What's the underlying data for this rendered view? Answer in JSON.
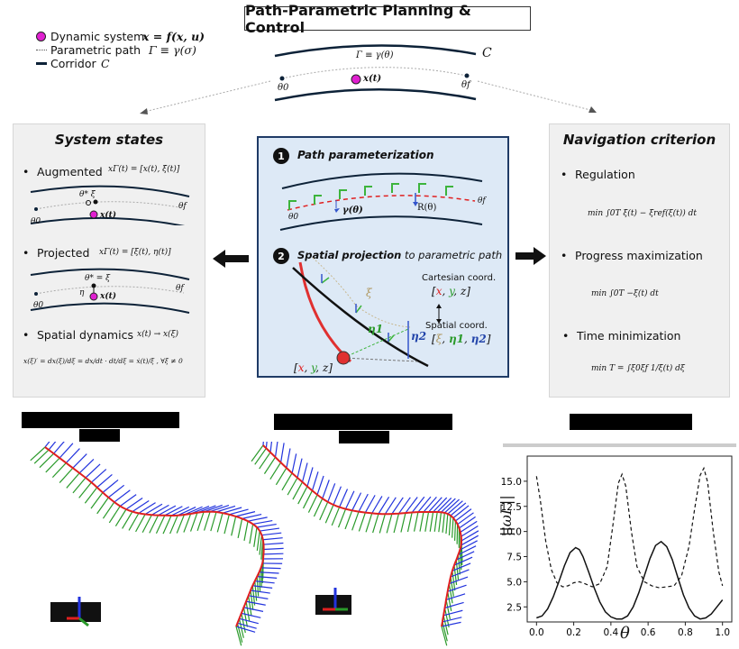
{
  "title": "Path-Parametric Planning & Control",
  "legend": {
    "dynamic_system": "Dynamic system",
    "dynamic_system_eq": "x = f(x, u)",
    "parametric_path": "Parametric path",
    "parametric_path_eq": "Γ ≡ γ(σ)",
    "corridor": "Corridor",
    "corridor_sym": "C"
  },
  "top_diagram": {
    "corridor_label": "C",
    "path_label": "Γ ≡ γ(θ)",
    "theta0": "θ0",
    "thetaf": "θf",
    "point": "x(t)"
  },
  "left_panel": {
    "title": "System states",
    "augmented_label": "Augmented",
    "augmented_eq": "xΓ(t) = [x(t), ξ̃(t)]",
    "d1_theta_star": "θ* ξ̃",
    "d1_theta0": "θ0",
    "d1_thetaf": "θf",
    "d1_point": "x(t)",
    "projected_label": "Projected",
    "projected_eq": "xΓ(t) = [ξ(t), η(t)]",
    "d2_theta_star": "θ* = ξ",
    "d2_eta": "η",
    "d2_theta0": "θ0",
    "d2_thetaf": "θf",
    "d2_point": "x(t)",
    "spatial_label": "Spatial dynamics",
    "spatial_eq": "x(t) → x(ξ)",
    "spatial_formula": "x(ξ)′ = dx(ξ)/dξ = dx/dt · dt/dξ = ẋ(t)/ξ̇ , ∀ξ̇ ≠ 0"
  },
  "center_panel": {
    "step1_num": "1",
    "step1_title": "Path parameterization",
    "gamma_label": "γ(θ)",
    "r_label": "R(θ)",
    "c_theta0": "θ0",
    "c_thetaf": "θf",
    "step2_num": "2",
    "step2_title": "Spatial projection",
    "step2_suffix": "to parametric path",
    "xi_label": "ξ",
    "eta1_label": "η1",
    "eta2_label": "η2",
    "cartesian_label": "Cartesian coord.",
    "cartesian_vec": [
      "x",
      "y",
      "z"
    ],
    "spatial_coord_label": "Spatial coord.",
    "spatial_vec": [
      "ξ",
      "η1",
      "η2"
    ],
    "bottom_vec": [
      "x",
      "y",
      "z"
    ]
  },
  "right_panel": {
    "title": "Navigation criterion",
    "regulation_label": "Regulation",
    "regulation_eq": "min ∫0T ξ̇(t) − ξ̇ref(ξ(t)) dt",
    "progress_label": "Progress maximization",
    "progress_eq": "min ∫0T −ξ(t) dt",
    "time_label": "Time minimization",
    "time_eq": "min T = ∫ξ0ξf 1/ξ̇(t) dξ"
  },
  "chart_data": {
    "type": "line",
    "xlabel": "θ",
    "ylabel": "||ωΓ||",
    "xlim": [
      -0.05,
      1.05
    ],
    "ylim": [
      1.0,
      17.5
    ],
    "xticks": [
      0.0,
      0.2,
      0.4,
      0.6,
      0.8,
      1.0
    ],
    "yticks": [
      2.5,
      5.0,
      7.5,
      10.0,
      12.5,
      15.0
    ],
    "series": [
      {
        "style": "dashed",
        "x": [
          0.0,
          0.02,
          0.05,
          0.08,
          0.11,
          0.14,
          0.17,
          0.2,
          0.23,
          0.26,
          0.3,
          0.34,
          0.38,
          0.41,
          0.44,
          0.46,
          0.48,
          0.51,
          0.54,
          0.58,
          0.62,
          0.66,
          0.7,
          0.74,
          0.78,
          0.82,
          0.85,
          0.88,
          0.9,
          0.92,
          0.95,
          0.98,
          1.0
        ],
        "y": [
          15.5,
          13.2,
          9.0,
          6.2,
          4.9,
          4.5,
          4.6,
          4.9,
          5.0,
          4.8,
          4.5,
          4.8,
          6.5,
          10.5,
          14.8,
          15.7,
          14.5,
          10.0,
          6.5,
          5.0,
          4.6,
          4.4,
          4.5,
          4.6,
          5.6,
          8.5,
          12.2,
          15.6,
          16.3,
          14.9,
          10.0,
          6.0,
          4.6
        ]
      },
      {
        "style": "solid",
        "x": [
          0.0,
          0.03,
          0.06,
          0.09,
          0.12,
          0.15,
          0.18,
          0.21,
          0.23,
          0.25,
          0.28,
          0.31,
          0.34,
          0.37,
          0.4,
          0.43,
          0.46,
          0.49,
          0.52,
          0.55,
          0.58,
          0.61,
          0.64,
          0.67,
          0.7,
          0.73,
          0.76,
          0.79,
          0.82,
          0.85,
          0.88,
          0.91,
          0.94,
          0.97,
          1.0
        ],
        "y": [
          1.4,
          1.6,
          2.3,
          3.5,
          5.0,
          6.6,
          7.9,
          8.4,
          8.2,
          7.5,
          6.0,
          4.4,
          3.0,
          2.0,
          1.5,
          1.3,
          1.3,
          1.6,
          2.5,
          3.9,
          5.6,
          7.3,
          8.6,
          9.0,
          8.5,
          7.2,
          5.4,
          3.7,
          2.4,
          1.6,
          1.3,
          1.4,
          1.8,
          2.5,
          3.2
        ]
      }
    ]
  }
}
